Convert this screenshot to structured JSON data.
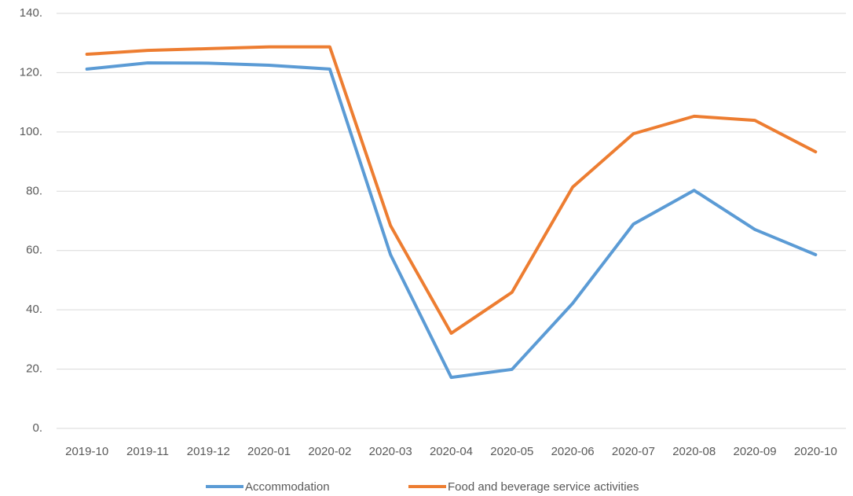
{
  "chart_data": {
    "type": "line",
    "categories": [
      "2019-10",
      "2019-11",
      "2019-12",
      "2020-01",
      "2020-02",
      "2020-03",
      "2020-04",
      "2020-05",
      "2020-06",
      "2020-07",
      "2020-08",
      "2020-09",
      "2020-10"
    ],
    "series": [
      {
        "name": "Accommodation",
        "color": "#5b9bd5",
        "values": [
          121.2,
          123.3,
          123.2,
          122.5,
          121.2,
          58.6,
          17.2,
          19.9,
          42.2,
          68.9,
          80.3,
          67.1,
          58.6
        ]
      },
      {
        "name": "Food and beverage service activities",
        "color": "#ed7d31",
        "values": [
          126.2,
          127.5,
          128.1,
          128.7,
          128.7,
          68.4,
          32.1,
          45.9,
          81.4,
          99.4,
          105.3,
          103.9,
          93.3
        ]
      }
    ],
    "ylim": [
      0,
      140
    ],
    "yticks": [
      {
        "value": 0,
        "label": "0."
      },
      {
        "value": 20,
        "label": "20."
      },
      {
        "value": 40,
        "label": "40."
      },
      {
        "value": 60,
        "label": "60."
      },
      {
        "value": 80,
        "label": "80."
      },
      {
        "value": 100,
        "label": "100."
      },
      {
        "value": 120,
        "label": "120."
      },
      {
        "value": 140,
        "label": "140."
      }
    ],
    "grid": true,
    "legend": "bottom"
  }
}
